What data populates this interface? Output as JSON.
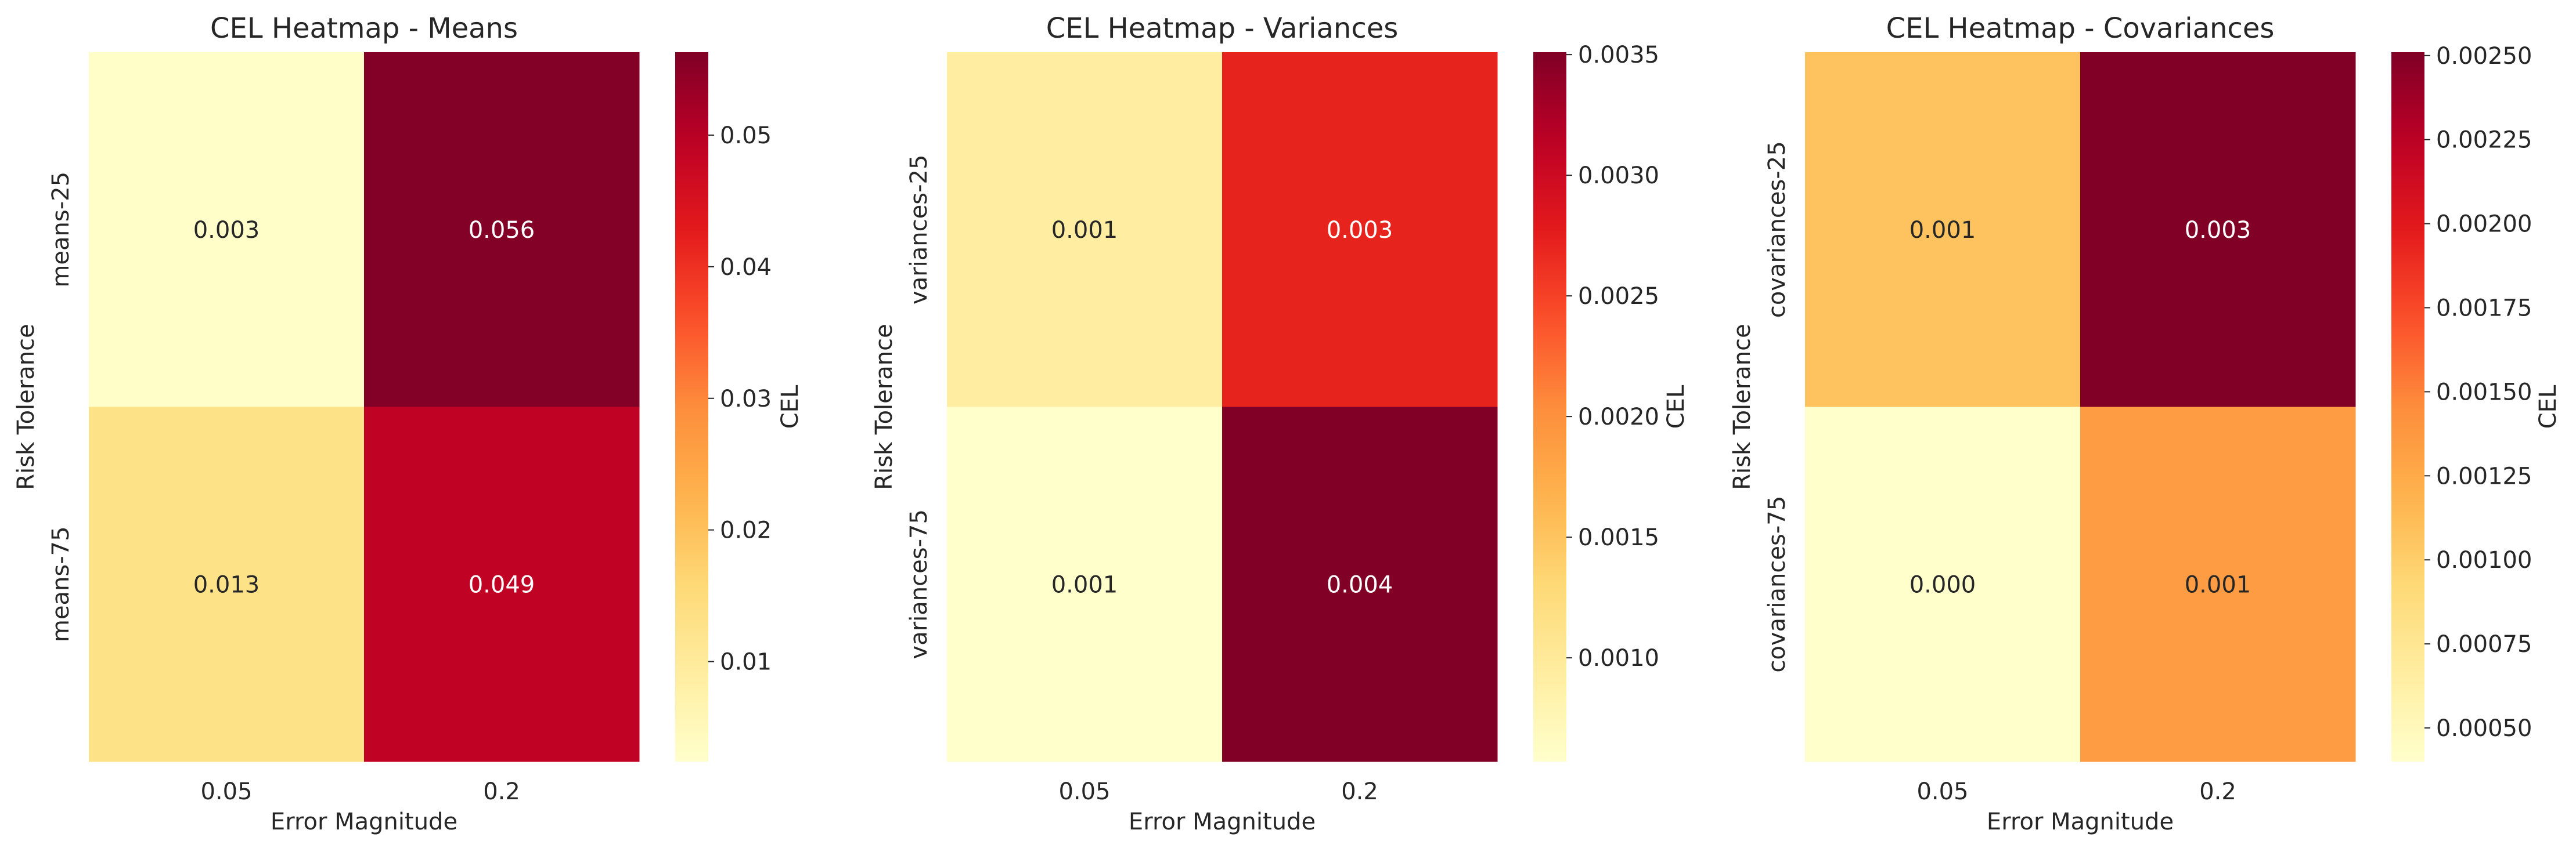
{
  "chart_data": [
    {
      "type": "heatmap",
      "title": "CEL Heatmap - Means",
      "xlabel": "Error Magnitude",
      "ylabel": "Risk Tolerance",
      "x_categories": [
        "0.05",
        "0.2"
      ],
      "y_categories": [
        "means-25",
        "means-75"
      ],
      "values": [
        [
          0.003,
          0.056
        ],
        [
          0.013,
          0.049
        ]
      ],
      "annotations": [
        [
          "0.003",
          "0.056"
        ],
        [
          "0.013",
          "0.049"
        ]
      ],
      "colorbar": {
        "label": "CEL",
        "colormap": "YlOrRd",
        "range": [
          0.0024,
          0.0563
        ],
        "ticks": [
          0.01,
          0.02,
          0.03,
          0.04,
          0.05
        ],
        "tick_labels": [
          "0.01",
          "0.02",
          "0.03",
          "0.04",
          "0.05"
        ]
      }
    },
    {
      "type": "heatmap",
      "title": "CEL Heatmap - Variances",
      "xlabel": "Error Magnitude",
      "ylabel": "Risk Tolerance",
      "x_categories": [
        "0.05",
        "0.2"
      ],
      "y_categories": [
        "variances-25",
        "variances-75"
      ],
      "values": [
        [
          0.00093,
          0.00271
        ],
        [
          0.00057,
          0.00351
        ]
      ],
      "annotations": [
        [
          "0.001",
          "0.003"
        ],
        [
          "0.001",
          "0.004"
        ]
      ],
      "colorbar": {
        "label": "CEL",
        "colormap": "YlOrRd",
        "range": [
          0.00057,
          0.00351
        ],
        "ticks": [
          0.001,
          0.0015,
          0.002,
          0.0025,
          0.003,
          0.0035
        ],
        "tick_labels": [
          "0.0010",
          "0.0015",
          "0.0020",
          "0.0025",
          "0.0030",
          "0.0035"
        ]
      }
    },
    {
      "type": "heatmap",
      "title": "CEL Heatmap - Covariances",
      "xlabel": "Error Magnitude",
      "ylabel": "Risk Tolerance",
      "x_categories": [
        "0.05",
        "0.2"
      ],
      "y_categories": [
        "covariances-25",
        "covariances-75"
      ],
      "values": [
        [
          0.00108,
          0.00251
        ],
        [
          0.0004,
          0.00135
        ]
      ],
      "annotations": [
        [
          "0.001",
          "0.003"
        ],
        [
          "0.000",
          "0.001"
        ]
      ],
      "colorbar": {
        "label": "CEL",
        "colormap": "YlOrRd",
        "range": [
          0.0004,
          0.00251
        ],
        "ticks": [
          0.0005,
          0.00075,
          0.001,
          0.00125,
          0.0015,
          0.00175,
          0.002,
          0.00225,
          0.0025
        ],
        "tick_labels": [
          "0.00050",
          "0.00075",
          "0.00100",
          "0.00125",
          "0.00150",
          "0.00175",
          "0.00200",
          "0.00225",
          "0.00250"
        ]
      }
    }
  ]
}
